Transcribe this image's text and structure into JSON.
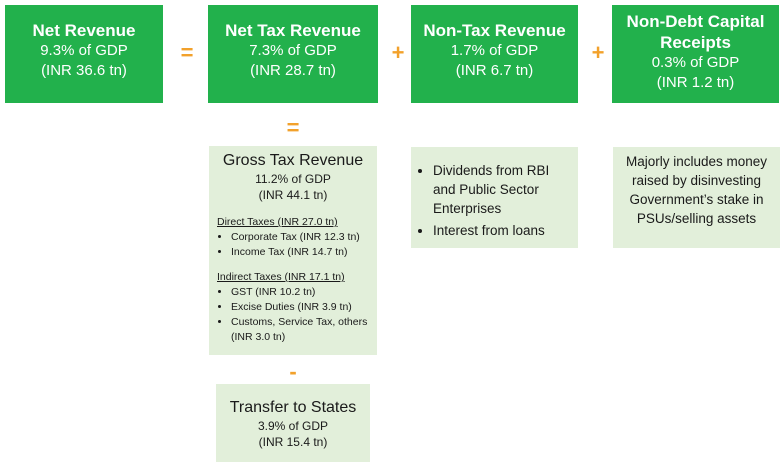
{
  "top": {
    "net_revenue": {
      "title": "Net Revenue",
      "gdp": "9.3% of GDP",
      "amount": "(INR 36.6 tn)"
    },
    "net_tax_revenue": {
      "title": "Net Tax Revenue",
      "gdp": "7.3% of GDP",
      "amount": "(INR 28.7 tn)"
    },
    "non_tax_revenue": {
      "title": "Non-Tax Revenue",
      "gdp": "1.7% of GDP",
      "amount": "(INR 6.7 tn)"
    },
    "non_debt": {
      "title_line1": "Non-Debt Capital",
      "title_line2": "Receipts",
      "gdp": "0.3% of GDP",
      "amount": "(INR 1.2 tn)"
    }
  },
  "operators": {
    "equals": "=",
    "plus": "+",
    "minus": "-"
  },
  "gross_tax": {
    "title": "Gross Tax Revenue",
    "gdp": "11.2% of GDP",
    "amount": "(INR 44.1 tn)",
    "direct": {
      "heading": "Direct Taxes (INR 27.0 tn)",
      "items": [
        "Corporate Tax (INR 12.3 tn)",
        "Income Tax (INR 14.7 tn)"
      ]
    },
    "indirect": {
      "heading": "Indirect Taxes (INR 17.1 tn)",
      "items": [
        "GST (INR 10.2 tn)",
        "Excise Duties (INR 3.9 tn)",
        "Customs, Service Tax, others (INR 3.0 tn)"
      ]
    }
  },
  "transfer": {
    "title": "Transfer to States",
    "gdp": "3.9% of GDP",
    "amount": "(INR 15.4 tn)"
  },
  "non_tax_detail": {
    "items": [
      "Dividends from RBI and Public Sector Enterprises",
      "Interest from loans"
    ]
  },
  "non_debt_detail": {
    "text": "Majorly includes money raised by disinvesting Government’s stake in PSUs/selling assets"
  },
  "colors": {
    "green": "#22b14c",
    "light_green": "#e2efda",
    "operator": "#f2a12b"
  }
}
